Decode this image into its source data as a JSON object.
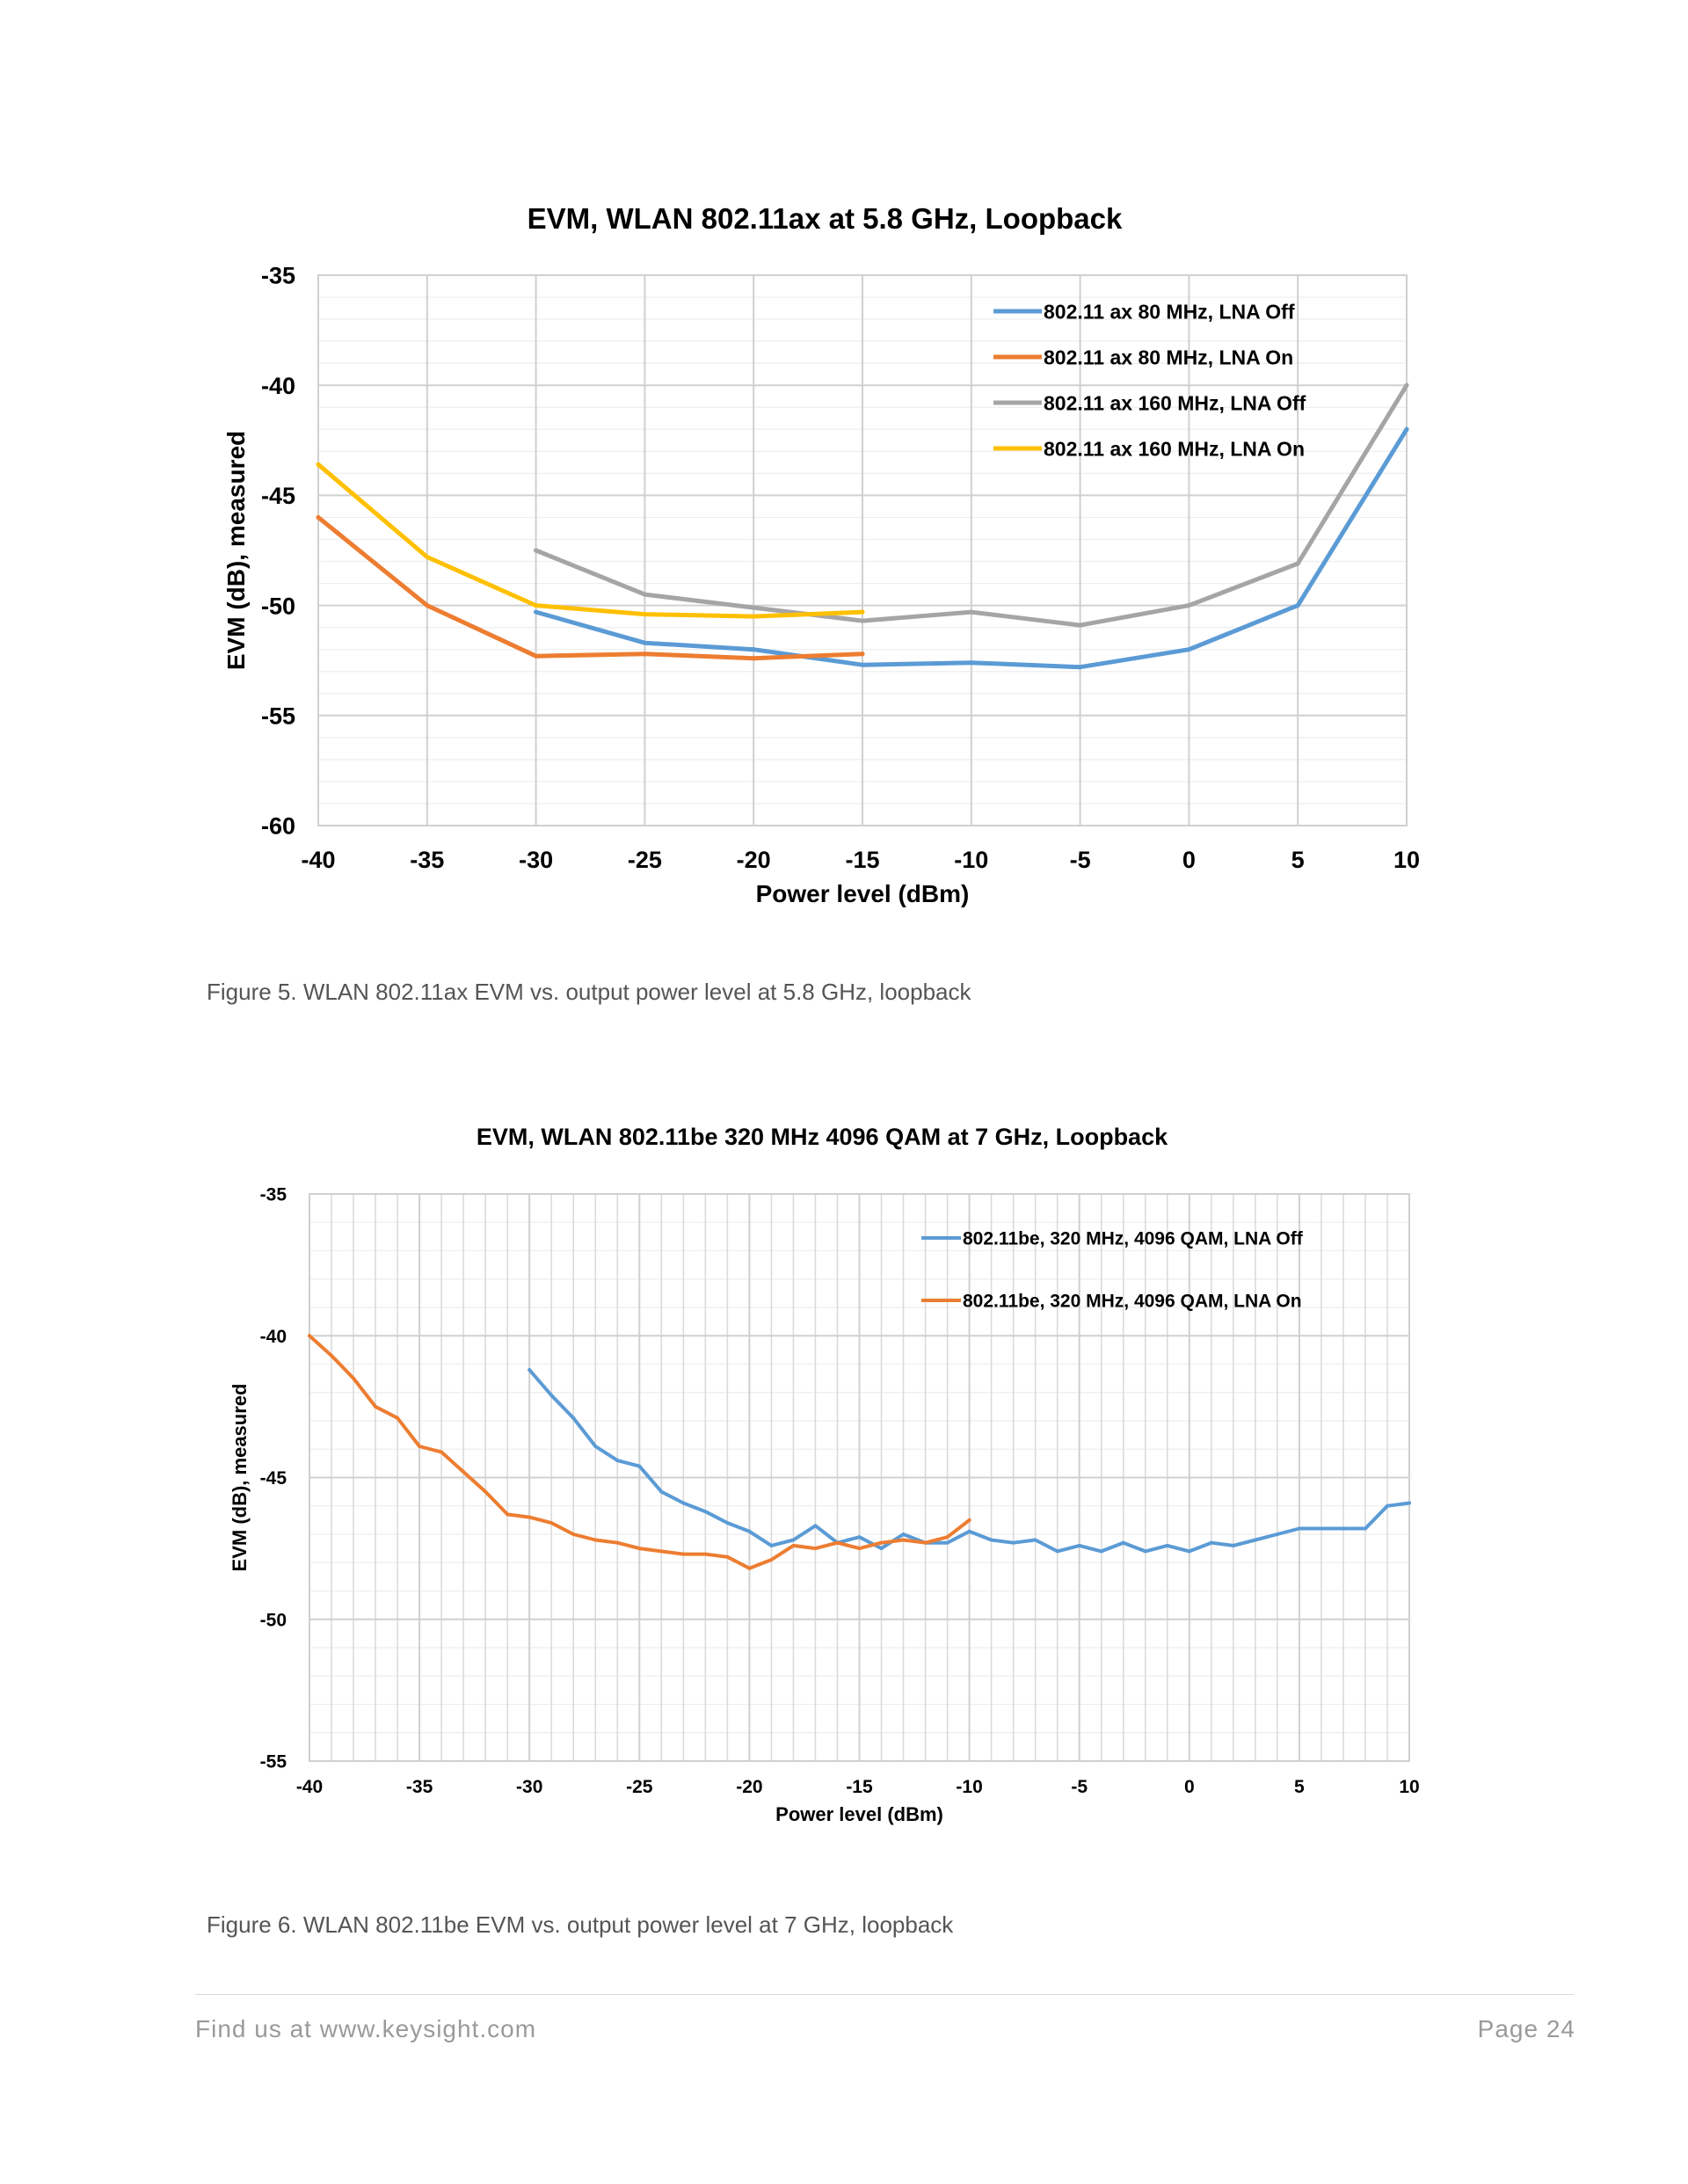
{
  "chart_data": [
    {
      "type": "line",
      "title": "EVM, WLAN 802.11ax at 5.8 GHz, Loopback",
      "xlabel": "Power level (dBm)",
      "ylabel": "EVM (dB), measured",
      "xlim": [
        -40,
        10
      ],
      "ylim": [
        -60,
        -35
      ],
      "xticks": [
        -40,
        -35,
        -30,
        -25,
        -20,
        -15,
        -10,
        -5,
        0,
        5,
        10
      ],
      "yticks": [
        -35,
        -40,
        -45,
        -50,
        -55,
        -60
      ],
      "x_minor_step": 5,
      "y_minor_step": 1,
      "grid": true,
      "legend_position": "top-right",
      "series": [
        {
          "name": "802.11 ax 80 MHz, LNA Off",
          "color": "#5b9bd5",
          "x": [
            -30,
            -25,
            -20,
            -15,
            -10,
            -5,
            0,
            5,
            10
          ],
          "values": [
            -50.3,
            -51.7,
            -52.0,
            -52.7,
            -52.6,
            -52.8,
            -52.0,
            -50.0,
            -42.0
          ]
        },
        {
          "name": "802.11 ax 80 MHz, LNA On",
          "color": "#ed7d31",
          "x": [
            -40,
            -35,
            -30,
            -25,
            -20,
            -15
          ],
          "values": [
            -46.0,
            -50.0,
            -52.3,
            -52.2,
            -52.4,
            -52.2
          ]
        },
        {
          "name": "802.11 ax 160 MHz, LNA Off",
          "color": "#a5a5a5",
          "x": [
            -30,
            -25,
            -20,
            -15,
            -10,
            -5,
            0,
            5,
            10
          ],
          "values": [
            -47.5,
            -49.5,
            -50.1,
            -50.7,
            -50.3,
            -50.9,
            -50.0,
            -48.1,
            -40.0
          ]
        },
        {
          "name": "802.11 ax 160 MHz, LNA On",
          "color": "#ffc000",
          "x": [
            -40,
            -35,
            -30,
            -25,
            -20,
            -15
          ],
          "values": [
            -43.6,
            -47.8,
            -50.0,
            -50.4,
            -50.5,
            -50.3
          ]
        }
      ]
    },
    {
      "type": "line",
      "title": "EVM, WLAN 802.11be 320 MHz 4096 QAM at 7 GHz, Loopback",
      "xlabel": "Power level (dBm)",
      "ylabel": "EVM (dB), measured",
      "xlim": [
        -40,
        10
      ],
      "ylim": [
        -55,
        -35
      ],
      "xticks": [
        -40,
        -35,
        -30,
        -25,
        -20,
        -15,
        -10,
        -5,
        0,
        5,
        10
      ],
      "yticks": [
        -35,
        -40,
        -45,
        -50,
        -55
      ],
      "x_minor_step": 1,
      "y_minor_step": 1,
      "grid": true,
      "legend_position": "top-right",
      "series": [
        {
          "name": "802.11be, 320 MHz, 4096 QAM, LNA Off",
          "color": "#5b9bd5",
          "x": [
            -30,
            -29,
            -28,
            -27,
            -26,
            -25,
            -24,
            -23,
            -22,
            -21,
            -20,
            -19,
            -18,
            -17,
            -16,
            -15,
            -14,
            -13,
            -12,
            -11,
            -10,
            -9,
            -8,
            -7,
            -6,
            -5,
            -4,
            -3,
            -2,
            -1,
            0,
            1,
            2,
            3,
            4,
            5,
            6,
            7,
            8,
            9,
            10
          ],
          "values": [
            -41.2,
            -42.1,
            -42.9,
            -43.9,
            -44.4,
            -44.6,
            -45.5,
            -45.9,
            -46.2,
            -46.6,
            -46.9,
            -47.4,
            -47.2,
            -46.7,
            -47.3,
            -47.1,
            -47.5,
            -47.0,
            -47.3,
            -47.3,
            -46.9,
            -47.2,
            -47.3,
            -47.2,
            -47.6,
            -47.4,
            -47.6,
            -47.3,
            -47.6,
            -47.4,
            -47.6,
            -47.3,
            -47.4,
            -47.2,
            -47.0,
            -46.8,
            -46.8,
            -46.8,
            -46.8,
            -46.0,
            -45.9
          ]
        },
        {
          "name": "802.11be, 320 MHz, 4096 QAM, LNA On",
          "color": "#ed7d31",
          "x": [
            -40,
            -39,
            -38,
            -37,
            -36,
            -35,
            -34,
            -33,
            -32,
            -31,
            -30,
            -29,
            -28,
            -27,
            -26,
            -25,
            -24,
            -23,
            -22,
            -21,
            -20,
            -19,
            -18,
            -17,
            -16,
            -15,
            -14,
            -13,
            -12,
            -11,
            -10
          ],
          "values": [
            -40.0,
            -40.7,
            -41.5,
            -42.5,
            -42.9,
            -43.9,
            -44.1,
            -44.8,
            -45.5,
            -46.3,
            -46.4,
            -46.6,
            -47.0,
            -47.2,
            -47.3,
            -47.5,
            -47.6,
            -47.7,
            -47.7,
            -47.8,
            -48.2,
            -47.9,
            -47.4,
            -47.5,
            -47.3,
            -47.5,
            -47.3,
            -47.2,
            -47.3,
            -47.1,
            -46.5
          ]
        }
      ]
    }
  ],
  "captions": {
    "figure5": "Figure 5. WLAN 802.11ax EVM vs. output power level at 5.8 GHz, loopback",
    "figure6": "Figure 6. WLAN 802.11be EVM vs. output power level at 7 GHz, loopback"
  },
  "footer": {
    "left": "Find us at www.keysight.com",
    "right": "Page 24"
  }
}
